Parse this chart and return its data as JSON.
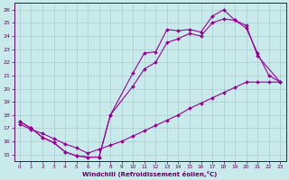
{
  "xlabel": "Windchill (Refroidissement éolien,°C)",
  "bg_color": "#c8eaea",
  "line_color": "#990099",
  "grid_color": "#aacccc",
  "axis_color": "#660066",
  "xlim": [
    -0.5,
    23.5
  ],
  "ylim": [
    14.5,
    26.5
  ],
  "xticks": [
    0,
    1,
    2,
    3,
    4,
    5,
    6,
    7,
    8,
    9,
    10,
    11,
    12,
    13,
    14,
    15,
    16,
    17,
    18,
    19,
    20,
    21,
    22,
    23
  ],
  "yticks": [
    15,
    16,
    17,
    18,
    19,
    20,
    21,
    22,
    23,
    24,
    25,
    26
  ],
  "line1_x": [
    0,
    1,
    2,
    3,
    4,
    5,
    6,
    7,
    8,
    10,
    11,
    12,
    13,
    14,
    15,
    16,
    17,
    18,
    19,
    20,
    21,
    22,
    23
  ],
  "line1_y": [
    17.5,
    17.0,
    16.3,
    15.9,
    15.2,
    14.9,
    14.8,
    14.8,
    18.0,
    21.2,
    22.7,
    22.8,
    24.5,
    24.4,
    24.5,
    24.3,
    25.5,
    26.0,
    25.2,
    24.6,
    22.7,
    21.0,
    20.5
  ],
  "line2_x": [
    0,
    1,
    2,
    3,
    4,
    5,
    6,
    7,
    8,
    10,
    11,
    12,
    13,
    14,
    15,
    16,
    17,
    18,
    19,
    20,
    21,
    23
  ],
  "line2_y": [
    17.5,
    17.0,
    16.3,
    15.9,
    15.2,
    14.9,
    14.8,
    14.8,
    18.0,
    20.2,
    21.5,
    22.0,
    23.5,
    23.8,
    24.2,
    24.0,
    25.0,
    25.3,
    25.2,
    24.8,
    22.5,
    20.5
  ],
  "line3_x": [
    0,
    1,
    2,
    3,
    4,
    5,
    6,
    7,
    8,
    9,
    10,
    11,
    12,
    13,
    14,
    15,
    16,
    17,
    18,
    19,
    20,
    21,
    22,
    23
  ],
  "line3_y": [
    17.3,
    16.9,
    16.6,
    16.2,
    15.8,
    15.5,
    15.1,
    15.4,
    15.7,
    16.0,
    16.4,
    16.8,
    17.2,
    17.6,
    18.0,
    18.5,
    18.9,
    19.3,
    19.7,
    20.1,
    20.5,
    20.5,
    20.5,
    20.5
  ]
}
